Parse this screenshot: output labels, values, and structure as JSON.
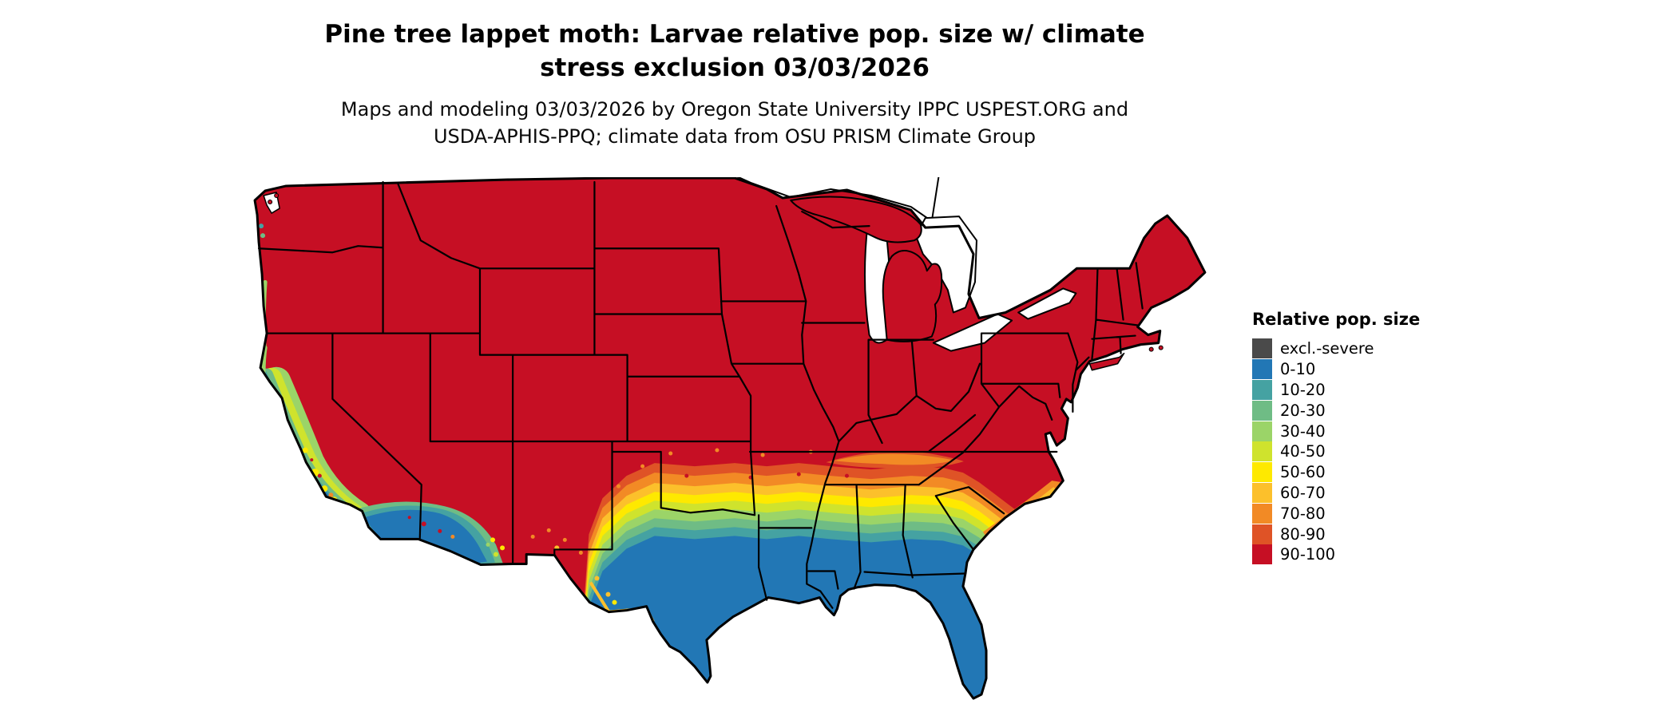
{
  "page": {
    "background": "#ffffff"
  },
  "title": {
    "line1": "Pine tree lappet moth: Larvae relative pop. size w/ climate",
    "line2": "stress exclusion 03/03/2026"
  },
  "subtitle": {
    "line1": "Maps and modeling 03/03/2026 by Oregon State University IPPC USPEST.ORG and",
    "line2": "USDA-APHIS-PPQ; climate data from OSU PRISM Climate Group"
  },
  "legend": {
    "title": "Relative pop. size",
    "entries": [
      {
        "label": "excl.-severe",
        "color": "#4a4a4a"
      },
      {
        "label": "0-10",
        "color": "#2277b5"
      },
      {
        "label": "10-20",
        "color": "#45a2a2"
      },
      {
        "label": "20-30",
        "color": "#6fbc85"
      },
      {
        "label": "30-40",
        "color": "#9bd468"
      },
      {
        "label": "40-50",
        "color": "#cfe32d"
      },
      {
        "label": "50-60",
        "color": "#fee900"
      },
      {
        "label": "60-70",
        "color": "#fcc02b"
      },
      {
        "label": "70-80",
        "color": "#f28a25"
      },
      {
        "label": "80-90",
        "color": "#df5326"
      },
      {
        "label": "90-100",
        "color": "#c60f24"
      }
    ]
  },
  "map": {
    "region": "Continental United States",
    "water_color": "#ffffff",
    "border_color": "#000000"
  }
}
